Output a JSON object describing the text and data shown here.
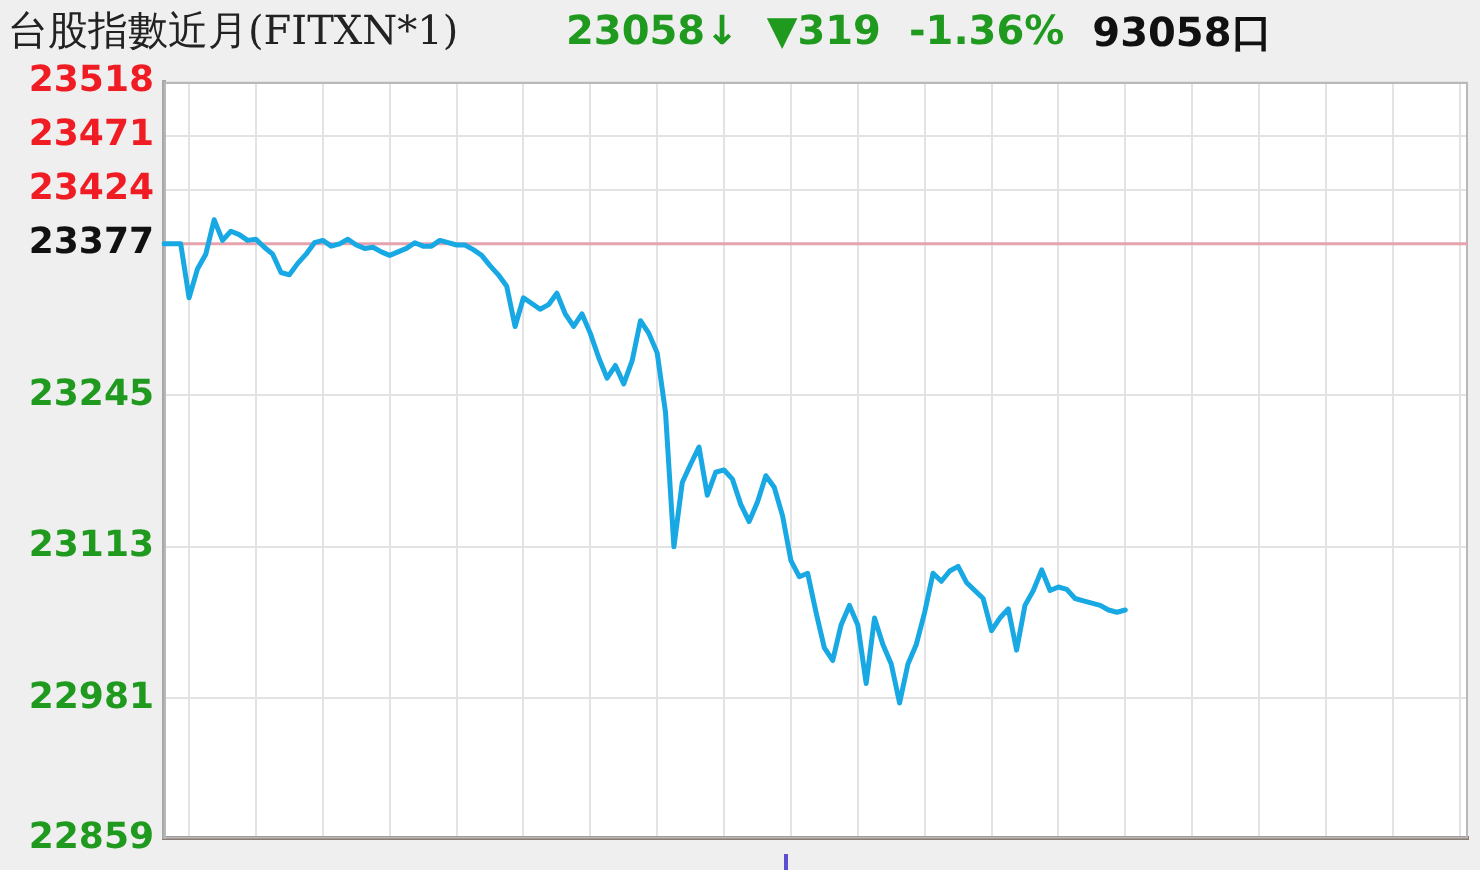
{
  "chart_data": {
    "type": "line",
    "title": "台股指數近月(FITXN*1)",
    "annotations": [
      "23058↓",
      "▼319",
      "-1.36%",
      "93058口"
    ],
    "categories": [
      null,
      null,
      null,
      null,
      null,
      null,
      null,
      null,
      null,
      null,
      null,
      null,
      null,
      null,
      null,
      null,
      null,
      null,
      null,
      null,
      null,
      null,
      null,
      null,
      null,
      null,
      null,
      null,
      null,
      null,
      null,
      null,
      null,
      null,
      null,
      null,
      null,
      null,
      null,
      null,
      null,
      null,
      null,
      null,
      null,
      null,
      null,
      null,
      null,
      null,
      null,
      null,
      null,
      null,
      null,
      null,
      null,
      null,
      null,
      null,
      null,
      null,
      null,
      null,
      null,
      null,
      null,
      null,
      null,
      null,
      null,
      null,
      null,
      null,
      null,
      null,
      null,
      null,
      null,
      null,
      null,
      null,
      null,
      null,
      null,
      null,
      null,
      null,
      null,
      null,
      null,
      null,
      null,
      null,
      null,
      null,
      null,
      null,
      null,
      null,
      null,
      null,
      null,
      null,
      null,
      null,
      null,
      null,
      null,
      null,
      null,
      null,
      null,
      null,
      null,
      null,
      null,
      null,
      null,
      null,
      null,
      null,
      null,
      null,
      null,
      null,
      null,
      null,
      null,
      null,
      null,
      null,
      null,
      null,
      null,
      null,
      null,
      null,
      null,
      null,
      null,
      null,
      null,
      null,
      null,
      null,
      null,
      null,
      null,
      null,
      null,
      null,
      null,
      null,
      null,
      null,
      null
    ],
    "values": [
      23377,
      23377,
      23377,
      23330,
      23355,
      23368,
      23398,
      23380,
      23388,
      23385,
      23380,
      23381,
      23374,
      23368,
      23352,
      23350,
      23360,
      23368,
      23378,
      23380,
      23375,
      23377,
      23381,
      23376,
      23373,
      23374,
      23370,
      23367,
      23370,
      23373,
      23378,
      23375,
      23375,
      23380,
      23378,
      23376,
      23376,
      23372,
      23367,
      23358,
      23350,
      23340,
      23305,
      23330,
      23325,
      23320,
      23324,
      23334,
      23316,
      23305,
      23316,
      23299,
      23278,
      23260,
      23271,
      23255,
      23275,
      23310,
      23299,
      23282,
      23230,
      23113,
      23169,
      23185,
      23200,
      23158,
      23178,
      23180,
      23172,
      23150,
      23135,
      23152,
      23175,
      23165,
      23140,
      23101,
      23087,
      23090,
      23056,
      23025,
      23014,
      23045,
      23062,
      23045,
      22994,
      23051,
      23028,
      23011,
      22977,
      23011,
      23028,
      23056,
      23090,
      23083,
      23092,
      23096,
      23082,
      23075,
      23068,
      23040,
      23051,
      23059,
      23023,
      23062,
      23075,
      23093,
      23075,
      23078,
      23076,
      23068,
      23066,
      23064,
      23062,
      23058,
      23056,
      23058,
      null,
      null,
      null,
      null,
      null,
      null,
      null,
      null,
      null,
      null,
      null,
      null,
      null,
      null,
      null,
      null,
      null,
      null,
      null,
      null,
      null,
      null,
      null,
      null,
      null,
      null,
      null,
      null,
      null,
      null,
      null,
      null,
      null,
      null,
      null,
      null,
      null,
      null,
      null,
      null,
      null
    ],
    "color": "#18a8e4",
    "ylim": [
      22859,
      23518
    ],
    "yticks": [
      22859,
      22981,
      23113,
      23245,
      23377,
      23424,
      23471,
      23518
    ],
    "tick_labels": "y",
    "grid": true,
    "legend": false,
    "marker": "none",
    "ref_lines": [
      {
        "axis": "y",
        "value": 23377,
        "color": "#e6a3ad"
      }
    ]
  }
}
